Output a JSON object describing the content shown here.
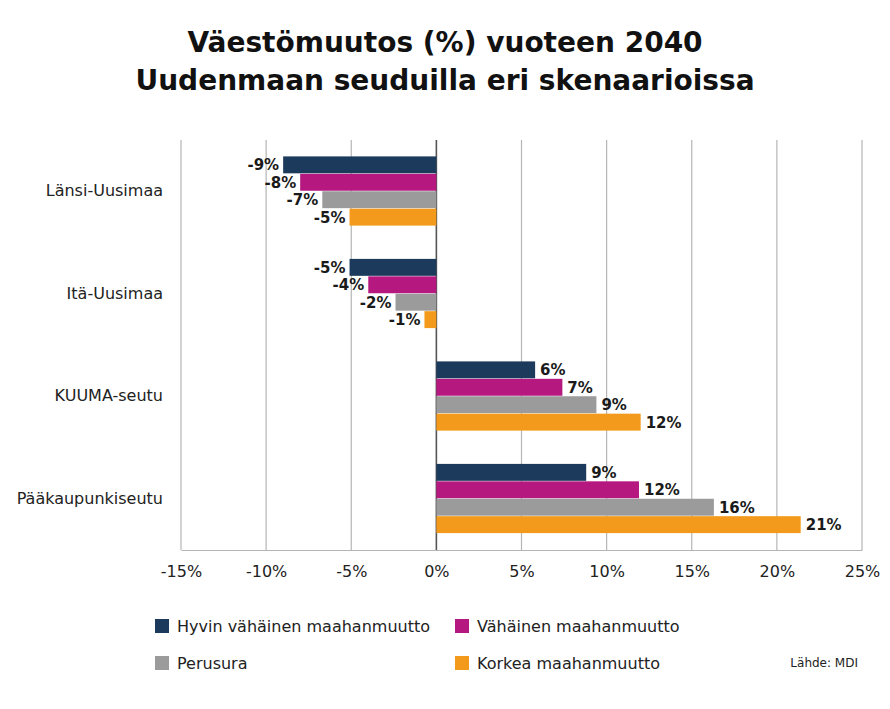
{
  "chart_data": {
    "type": "bar",
    "orientation": "horizontal",
    "title": "Väestömuutos (%) vuoteen 2040",
    "subtitle": "Uudenmaan seuduilla eri skenaarioissa",
    "annotations": [
      "Lähde: MDI"
    ],
    "categories": [
      "Länsi-Uusimaa",
      "Itä-Uusimaa",
      "KUUMA-seutu",
      "Pääkaupunkiseutu"
    ],
    "series": [
      {
        "name": "Hyvin vähäinen maahanmuutto",
        "color": "#1b3a5c",
        "values": [
          -9.0,
          -5.1,
          5.8,
          8.8
        ],
        "value_labels": [
          "-9%",
          "-5%",
          "6%",
          "9%"
        ]
      },
      {
        "name": "Vähäinen maahanmuutto",
        "color": "#b5187f",
        "values": [
          -8.0,
          -4.0,
          7.4,
          11.9
        ],
        "value_labels": [
          "-8%",
          "-4%",
          "7%",
          "12%"
        ]
      },
      {
        "name": "Perusura",
        "color": "#9b9b9b",
        "values": [
          -6.7,
          -2.4,
          9.4,
          16.3
        ],
        "value_labels": [
          "-7%",
          "-2%",
          "9%",
          "16%"
        ]
      },
      {
        "name": "Korkea maahanmuutto",
        "color": "#f39a1c",
        "values": [
          -5.1,
          -0.7,
          12.0,
          21.4
        ],
        "value_labels": [
          "-5%",
          "-1%",
          "12%",
          "21%"
        ]
      }
    ],
    "xlim": [
      -15,
      25
    ],
    "xticks": [
      {
        "value": -15,
        "label": "-15%"
      },
      {
        "value": -10,
        "label": "-10%"
      },
      {
        "value": -5,
        "label": "-5%"
      },
      {
        "value": 0,
        "label": "0%"
      },
      {
        "value": 5,
        "label": "5%"
      },
      {
        "value": 10,
        "label": "10%"
      },
      {
        "value": 15,
        "label": "15%"
      },
      {
        "value": 20,
        "label": "20%"
      },
      {
        "value": 25,
        "label": "25%"
      }
    ],
    "grid": true,
    "data_labels": true,
    "legend": "bottom"
  }
}
